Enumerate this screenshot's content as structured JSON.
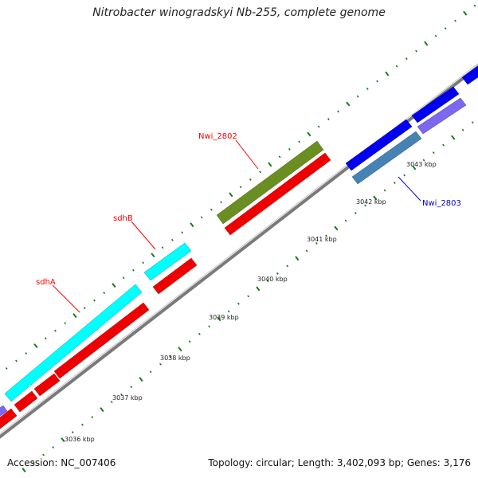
{
  "title": "Nitrobacter winogradskyi Nb-255, complete genome",
  "accession_text": "Accession: NC_007406",
  "summary_text": "Topology: circular; Length: 3,402,093 bp; Genes: 3,176",
  "colors": {
    "backbone": "#7a7a7a",
    "tick": "#1a7a1a",
    "label_red": "#ff0000",
    "label_blue": "#0000cc"
  },
  "scale_ticks": [
    {
      "label": "3036 kbp"
    },
    {
      "label": "3037 kbp"
    },
    {
      "label": "3038 kbp"
    },
    {
      "label": "3039 kbp"
    },
    {
      "label": "3040 kbp"
    },
    {
      "label": "3041 kbp"
    },
    {
      "label": "3042 kbp"
    },
    {
      "label": "3043 kbp"
    }
  ],
  "gene_labels": [
    {
      "text": "sdhA",
      "color": "#ff0000"
    },
    {
      "text": "sdhB",
      "color": "#ff0000"
    },
    {
      "text": "Nwi_2802",
      "color": "#ff0000"
    },
    {
      "text": "Nwi_2803",
      "color": "#0000cc"
    }
  ],
  "features": [
    {
      "name": "sdhA",
      "track": "cds",
      "color": "cyan"
    },
    {
      "name": "sdhB",
      "track": "cds",
      "color": "cyan"
    },
    {
      "name": "Nwi_2802",
      "track": "cds",
      "color": "olive"
    },
    {
      "name": "Nwi_2803",
      "track": "cds",
      "color": "blue"
    }
  ]
}
